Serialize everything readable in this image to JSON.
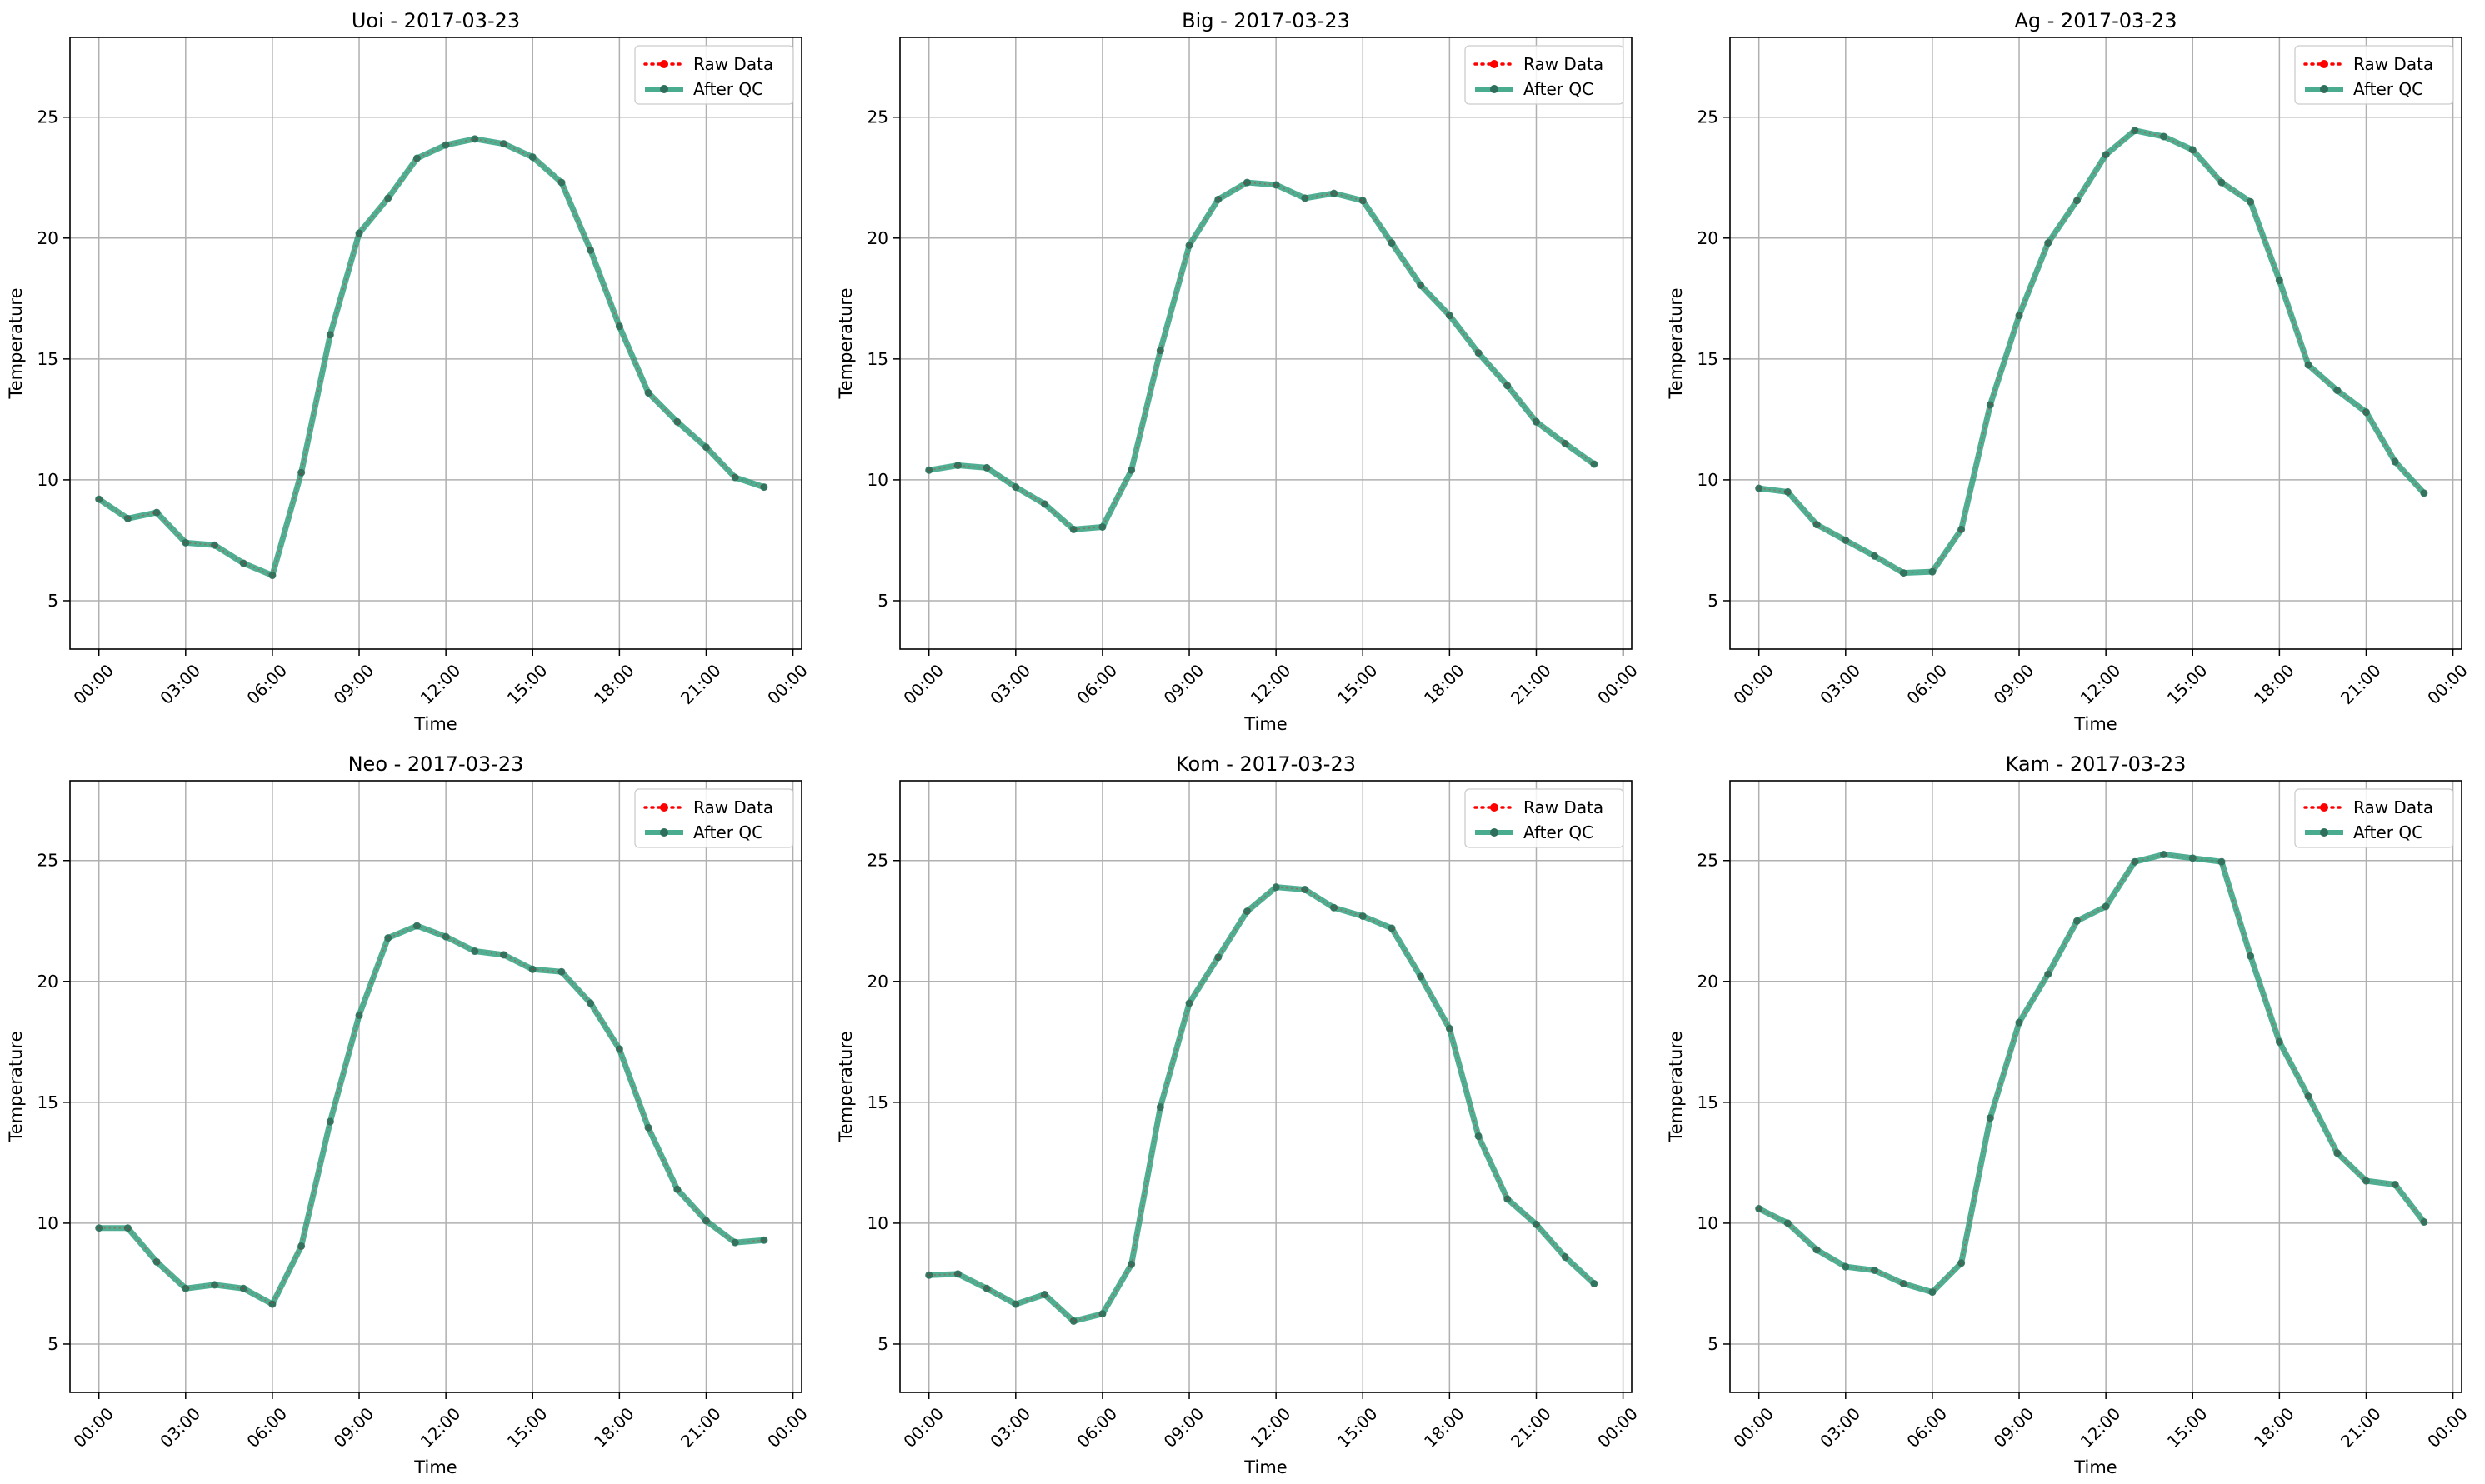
{
  "figure": {
    "x_ticks": [
      "00:00",
      "03:00",
      "06:00",
      "09:00",
      "12:00",
      "15:00",
      "18:00",
      "21:00",
      "00:00"
    ],
    "y_ticks": [
      5,
      10,
      15,
      20,
      25
    ],
    "xlabel": "Time",
    "ylabel": "Temperature",
    "legend": {
      "placement": "top-right",
      "raw_label": "Raw Data",
      "qc_label": "After QC"
    },
    "colors": {
      "raw": "#ff0000",
      "qc": "#2a9d7a",
      "qc_markers": "#2e6e5a",
      "grid": "#b0b0b0"
    }
  },
  "chart_data": [
    {
      "type": "line",
      "title": "Uoi - 2017-03-23",
      "xlabel": "Time",
      "ylabel": "Temperature",
      "x_hours": [
        0,
        1,
        2,
        3,
        4,
        5,
        6,
        7,
        8,
        9,
        10,
        11,
        12,
        13,
        14,
        15,
        16,
        17,
        18,
        19,
        20,
        21,
        22,
        23
      ],
      "ylim": [
        3,
        28.3
      ],
      "grid": true,
      "series": [
        {
          "name": "Raw Data",
          "values": [
            9.2,
            8.4,
            8.65,
            7.4,
            7.3,
            6.55,
            6.05,
            10.3,
            16.0,
            20.2,
            21.65,
            23.3,
            23.85,
            24.1,
            23.9,
            23.35,
            22.3,
            19.5,
            16.35,
            13.6,
            12.4,
            11.35,
            10.1,
            9.7
          ]
        },
        {
          "name": "After QC",
          "values": [
            9.2,
            8.4,
            8.65,
            7.4,
            7.3,
            6.55,
            6.05,
            10.3,
            16.0,
            20.2,
            21.65,
            23.3,
            23.85,
            24.1,
            23.9,
            23.35,
            22.3,
            19.5,
            16.35,
            13.6,
            12.4,
            11.35,
            10.1,
            9.7
          ]
        }
      ]
    },
    {
      "type": "line",
      "title": "Big - 2017-03-23",
      "xlabel": "Time",
      "ylabel": "Temperature",
      "x_hours": [
        0,
        1,
        2,
        3,
        4,
        5,
        6,
        7,
        8,
        9,
        10,
        11,
        12,
        13,
        14,
        15,
        16,
        17,
        18,
        19,
        20,
        21,
        22,
        23
      ],
      "ylim": [
        3,
        28.3
      ],
      "grid": true,
      "series": [
        {
          "name": "Raw Data",
          "values": [
            10.4,
            10.6,
            10.5,
            9.7,
            9.0,
            7.95,
            8.05,
            10.4,
            15.35,
            19.7,
            21.6,
            22.3,
            22.2,
            21.65,
            21.85,
            21.55,
            19.8,
            18.05,
            16.8,
            15.25,
            13.9,
            12.4,
            11.5,
            10.65
          ]
        },
        {
          "name": "After QC",
          "values": [
            10.4,
            10.6,
            10.5,
            9.7,
            9.0,
            7.95,
            8.05,
            10.4,
            15.35,
            19.7,
            21.6,
            22.3,
            22.2,
            21.65,
            21.85,
            21.55,
            19.8,
            18.05,
            16.8,
            15.25,
            13.9,
            12.4,
            11.5,
            10.65
          ]
        }
      ]
    },
    {
      "type": "line",
      "title": "Ag - 2017-03-23",
      "xlabel": "Time",
      "ylabel": "Temperature",
      "x_hours": [
        0,
        1,
        2,
        3,
        4,
        5,
        6,
        7,
        8,
        9,
        10,
        11,
        12,
        13,
        14,
        15,
        16,
        17,
        18,
        19,
        20,
        21,
        22,
        23
      ],
      "ylim": [
        3,
        28.3
      ],
      "grid": true,
      "series": [
        {
          "name": "Raw Data",
          "values": [
            9.65,
            9.5,
            8.15,
            7.5,
            6.85,
            6.15,
            6.2,
            7.95,
            13.1,
            16.8,
            19.8,
            21.55,
            23.45,
            24.45,
            24.2,
            23.65,
            22.3,
            21.5,
            18.25,
            14.75,
            13.7,
            12.8,
            10.75,
            9.45
          ]
        },
        {
          "name": "After QC",
          "values": [
            9.65,
            9.5,
            8.15,
            7.5,
            6.85,
            6.15,
            6.2,
            7.95,
            13.1,
            16.8,
            19.8,
            21.55,
            23.45,
            24.45,
            24.2,
            23.65,
            22.3,
            21.5,
            18.25,
            14.75,
            13.7,
            12.8,
            10.75,
            9.45
          ]
        }
      ]
    },
    {
      "type": "line",
      "title": "Neo - 2017-03-23",
      "xlabel": "Time",
      "ylabel": "Temperature",
      "x_hours": [
        0,
        1,
        2,
        3,
        4,
        5,
        6,
        7,
        8,
        9,
        10,
        11,
        12,
        13,
        14,
        15,
        16,
        17,
        18,
        19,
        20,
        21,
        22,
        23
      ],
      "ylim": [
        3,
        28.3
      ],
      "grid": true,
      "series": [
        {
          "name": "Raw Data",
          "values": [
            9.8,
            9.8,
            8.4,
            7.3,
            7.45,
            7.3,
            6.65,
            9.05,
            14.2,
            18.6,
            21.8,
            22.3,
            21.85,
            21.25,
            21.1,
            20.5,
            20.4,
            19.1,
            17.2,
            13.95,
            11.4,
            10.1,
            9.2,
            9.3
          ]
        },
        {
          "name": "After QC",
          "values": [
            9.8,
            9.8,
            8.4,
            7.3,
            7.45,
            7.3,
            6.65,
            9.05,
            14.2,
            18.6,
            21.8,
            22.3,
            21.85,
            21.25,
            21.1,
            20.5,
            20.4,
            19.1,
            17.2,
            13.95,
            11.4,
            10.1,
            9.2,
            9.3
          ]
        }
      ]
    },
    {
      "type": "line",
      "title": "Kom - 2017-03-23",
      "xlabel": "Time",
      "ylabel": "Temperature",
      "x_hours": [
        0,
        1,
        2,
        3,
        4,
        5,
        6,
        7,
        8,
        9,
        10,
        11,
        12,
        13,
        14,
        15,
        16,
        17,
        18,
        19,
        20,
        21,
        22,
        23
      ],
      "ylim": [
        3,
        28.3
      ],
      "grid": true,
      "series": [
        {
          "name": "Raw Data",
          "values": [
            7.85,
            7.9,
            7.3,
            6.65,
            7.05,
            5.95,
            6.25,
            8.3,
            14.8,
            19.1,
            21.0,
            22.9,
            23.9,
            23.8,
            23.05,
            22.7,
            22.2,
            20.2,
            18.05,
            13.6,
            11.0,
            9.95,
            8.6,
            7.5
          ]
        },
        {
          "name": "After QC",
          "values": [
            7.85,
            7.9,
            7.3,
            6.65,
            7.05,
            5.95,
            6.25,
            8.3,
            14.8,
            19.1,
            21.0,
            22.9,
            23.9,
            23.8,
            23.05,
            22.7,
            22.2,
            20.2,
            18.05,
            13.6,
            11.0,
            9.95,
            8.6,
            7.5
          ]
        }
      ]
    },
    {
      "type": "line",
      "title": "Kam - 2017-03-23",
      "xlabel": "Time",
      "ylabel": "Temperature",
      "x_hours": [
        0,
        1,
        2,
        3,
        4,
        5,
        6,
        7,
        8,
        9,
        10,
        11,
        12,
        13,
        14,
        15,
        16,
        17,
        18,
        19,
        20,
        21,
        22,
        23
      ],
      "ylim": [
        3,
        28.3
      ],
      "grid": true,
      "series": [
        {
          "name": "Raw Data",
          "values": [
            10.6,
            10.0,
            8.9,
            8.2,
            8.05,
            7.5,
            7.15,
            8.35,
            14.35,
            18.3,
            20.3,
            22.5,
            23.1,
            24.95,
            25.25,
            25.1,
            24.95,
            21.05,
            17.5,
            15.25,
            12.9,
            11.75,
            11.6,
            10.05
          ]
        },
        {
          "name": "After QC",
          "values": [
            10.6,
            10.0,
            8.9,
            8.2,
            8.05,
            7.5,
            7.15,
            8.35,
            14.35,
            18.3,
            20.3,
            22.5,
            23.1,
            24.95,
            25.25,
            25.1,
            24.95,
            21.05,
            17.5,
            15.25,
            12.9,
            11.75,
            11.6,
            10.05
          ]
        }
      ]
    }
  ]
}
